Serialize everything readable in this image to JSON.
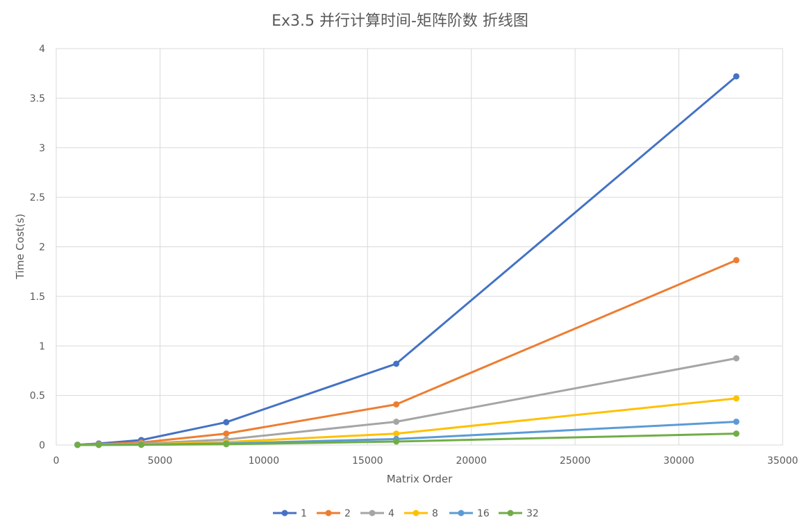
{
  "chart_data": {
    "type": "line",
    "title": "Ex3.5 并行计算时间-矩阵阶数 折线图",
    "xlabel": "Matrix Order",
    "ylabel": "Time Cost(s)",
    "xlim": [
      0,
      35000
    ],
    "ylim": [
      0,
      4
    ],
    "x_ticks": [
      "0",
      "5000",
      "10000",
      "15000",
      "20000",
      "25000",
      "30000",
      "35000"
    ],
    "y_ticks": [
      "0",
      "0.5",
      "1",
      "1.5",
      "2",
      "2.5",
      "3",
      "3.5",
      "4"
    ],
    "x_tick_values": [
      0,
      5000,
      10000,
      15000,
      20000,
      25000,
      30000,
      35000
    ],
    "y_tick_values": [
      0,
      0.5,
      1,
      1.5,
      2,
      2.5,
      3,
      3.5,
      4
    ],
    "grid": true,
    "legend_position": "bottom",
    "x": [
      1024,
      2048,
      4096,
      8192,
      16384,
      32768
    ],
    "series": [
      {
        "name": "1",
        "color": "#4472C4",
        "values": [
          0.003,
          0.015,
          0.05,
          0.23,
          0.82,
          3.72
        ]
      },
      {
        "name": "2",
        "color": "#ED7D31",
        "values": [
          0.002,
          0.008,
          0.025,
          0.115,
          0.41,
          1.865
        ]
      },
      {
        "name": "4",
        "color": "#A5A5A5",
        "values": [
          0.001,
          0.004,
          0.013,
          0.055,
          0.235,
          0.875
        ]
      },
      {
        "name": "8",
        "color": "#FFC000",
        "values": [
          0.001,
          0.002,
          0.007,
          0.03,
          0.115,
          0.47
        ]
      },
      {
        "name": "16",
        "color": "#5B9BD5",
        "values": [
          0.001,
          0.001,
          0.004,
          0.015,
          0.06,
          0.235
        ]
      },
      {
        "name": "32",
        "color": "#70AD47",
        "values": [
          0.001,
          0.001,
          0.002,
          0.008,
          0.035,
          0.115
        ]
      }
    ]
  }
}
